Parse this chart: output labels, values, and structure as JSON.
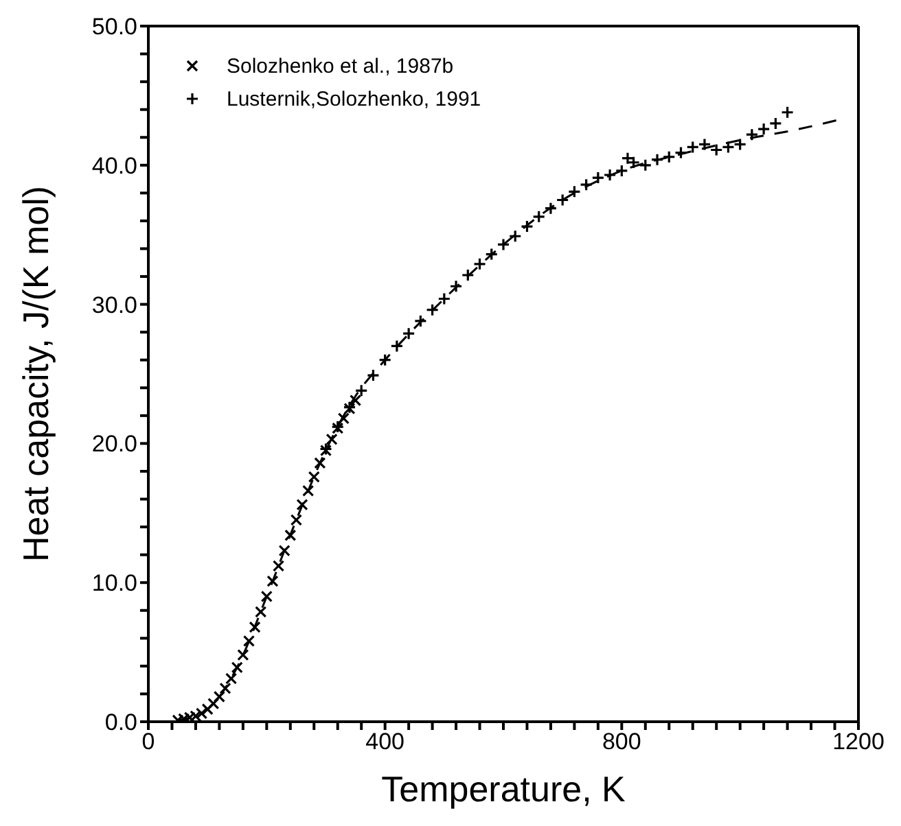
{
  "chart_data": {
    "type": "scatter",
    "xlabel": "Temperature, K",
    "ylabel": "Heat capacity, J/(K mol)",
    "xlim": [
      0,
      1200
    ],
    "ylim": [
      0,
      50
    ],
    "xticks": [
      0,
      {
        "value": 40,
        "label": null
      },
      {
        "value": 80,
        "label": null
      },
      {
        "value": 120,
        "label": null
      },
      {
        "value": 160,
        "label": null
      },
      {
        "value": 200,
        "label": null
      },
      {
        "value": 240,
        "label": null
      },
      {
        "value": 280,
        "label": null
      },
      {
        "value": 320,
        "label": null
      },
      {
        "value": 360,
        "label": null
      },
      400,
      {
        "value": 440,
        "label": null
      },
      {
        "value": 480,
        "label": null
      },
      {
        "value": 520,
        "label": null
      },
      {
        "value": 560,
        "label": null
      },
      {
        "value": 600,
        "label": null
      },
      {
        "value": 640,
        "label": null
      },
      {
        "value": 680,
        "label": null
      },
      {
        "value": 720,
        "label": null
      },
      {
        "value": 760,
        "label": null
      },
      800,
      {
        "value": 840,
        "label": null
      },
      {
        "value": 880,
        "label": null
      },
      {
        "value": 920,
        "label": null
      },
      {
        "value": 960,
        "label": null
      },
      {
        "value": 1000,
        "label": null
      },
      {
        "value": 1040,
        "label": null
      },
      {
        "value": 1080,
        "label": null
      },
      {
        "value": 1120,
        "label": null
      },
      {
        "value": 1160,
        "label": null
      },
      1200
    ],
    "yticks": [
      {
        "value": 0,
        "label": "0.0"
      },
      {
        "value": 2,
        "label": null
      },
      {
        "value": 4,
        "label": null
      },
      {
        "value": 6,
        "label": null
      },
      {
        "value": 8,
        "label": null
      },
      {
        "value": 10,
        "label": "10.0"
      },
      {
        "value": 12,
        "label": null
      },
      {
        "value": 14,
        "label": null
      },
      {
        "value": 16,
        "label": null
      },
      {
        "value": 18,
        "label": null
      },
      {
        "value": 20,
        "label": "20.0"
      },
      {
        "value": 22,
        "label": null
      },
      {
        "value": 24,
        "label": null
      },
      {
        "value": 26,
        "label": null
      },
      {
        "value": 28,
        "label": null
      },
      {
        "value": 30,
        "label": "30.0"
      },
      {
        "value": 32,
        "label": null
      },
      {
        "value": 34,
        "label": null
      },
      {
        "value": 36,
        "label": null
      },
      {
        "value": 38,
        "label": null
      },
      {
        "value": 40,
        "label": "40.0"
      },
      {
        "value": 42,
        "label": null
      },
      {
        "value": 44,
        "label": null
      },
      {
        "value": 46,
        "label": null
      },
      {
        "value": 48,
        "label": null
      },
      {
        "value": 50,
        "label": "50.0"
      }
    ],
    "legend": "top left",
    "series": [
      {
        "name": "Solozhenko et al., 1987b",
        "color": "#000000",
        "marker": "x",
        "x": [
          50,
          60,
          70,
          80,
          90,
          100,
          110,
          120,
          130,
          140,
          150,
          160,
          170,
          180,
          190,
          200,
          210,
          220,
          230,
          240,
          250,
          260,
          270,
          280,
          290,
          300,
          310,
          320,
          330,
          340,
          350
        ],
        "values": [
          0.1,
          0.2,
          0.3,
          0.4,
          0.6,
          0.9,
          1.3,
          1.8,
          2.4,
          3.1,
          3.9,
          4.8,
          5.8,
          6.8,
          7.9,
          9.0,
          10.1,
          11.2,
          12.3,
          13.4,
          14.5,
          15.6,
          16.6,
          17.6,
          18.6,
          19.5,
          20.3,
          21.1,
          21.8,
          22.5,
          23.1
        ]
      },
      {
        "name": "Lusternik,Solozhenko, 1991",
        "color": "#000000",
        "marker": "cross",
        "x": [
          300,
          320,
          340,
          360,
          380,
          400,
          420,
          440,
          460,
          480,
          500,
          520,
          540,
          560,
          580,
          600,
          620,
          640,
          660,
          680,
          700,
          720,
          740,
          760,
          780,
          800,
          810,
          820,
          840,
          860,
          880,
          900,
          920,
          940,
          960,
          980,
          1000,
          1020,
          1040,
          1060,
          1080
        ],
        "values": [
          19.6,
          21.2,
          22.6,
          23.8,
          24.9,
          26.0,
          27.0,
          27.9,
          28.8,
          29.6,
          30.4,
          31.3,
          32.1,
          32.9,
          33.6,
          34.3,
          34.9,
          35.6,
          36.3,
          36.9,
          37.5,
          38.1,
          38.6,
          39.1,
          39.3,
          39.6,
          40.5,
          40.2,
          40.0,
          40.4,
          40.6,
          40.9,
          41.3,
          41.5,
          41.1,
          41.3,
          41.5,
          42.2,
          42.6,
          43.0,
          43.8
        ]
      },
      {
        "type": "line",
        "color": "#000000",
        "line_style": "dashed",
        "marker": "none",
        "x": [
          50,
          100,
          150,
          200,
          250,
          300,
          350,
          400,
          500,
          600,
          700,
          800,
          900,
          1000,
          1100,
          1170
        ],
        "values": [
          0.1,
          0.9,
          3.9,
          9.0,
          14.5,
          19.5,
          23.4,
          26.0,
          30.4,
          34.3,
          37.5,
          39.6,
          40.8,
          41.8,
          42.6,
          43.3
        ]
      }
    ]
  }
}
